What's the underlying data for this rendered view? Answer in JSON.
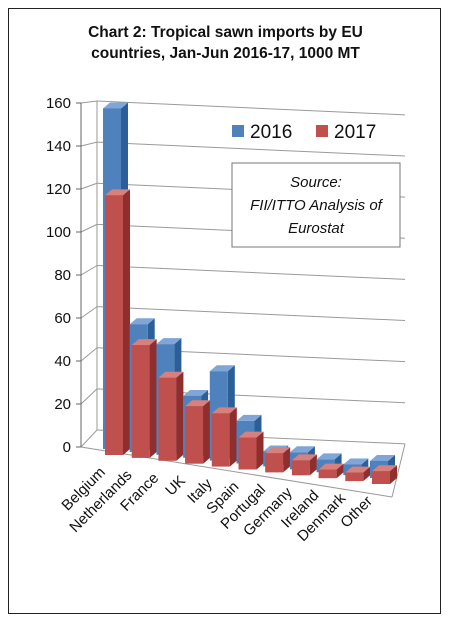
{
  "chart_data": {
    "type": "bar",
    "title_line1": "Chart 2: Tropical sawn imports by EU",
    "title_line2": "countries, Jan-Jun 2016-17, 1000 MT",
    "categories": [
      "Belgium",
      "Netherlands",
      "France",
      "UK",
      "Italy",
      "Spain",
      "Portugal",
      "Germany",
      "Ireland",
      "Denmark",
      "Other"
    ],
    "series": [
      {
        "name": "2016",
        "color": "#4f81bd",
        "values": [
          160,
          60,
          52,
          29,
          42,
          20,
          7,
          8,
          6,
          5,
          8
        ]
      },
      {
        "name": "2017",
        "color": "#c0504d",
        "values": [
          122,
          53,
          39,
          27,
          25,
          15,
          9,
          7,
          4,
          4,
          6
        ]
      }
    ],
    "ylim": [
      0,
      160
    ],
    "yticks": [
      0,
      20,
      40,
      60,
      80,
      100,
      120,
      140,
      160
    ],
    "grid": true,
    "legend_position": "top-right",
    "annotation": {
      "line1": "Source:",
      "line2": "FII/ITTO Analysis of",
      "line3": "Eurostat"
    }
  }
}
